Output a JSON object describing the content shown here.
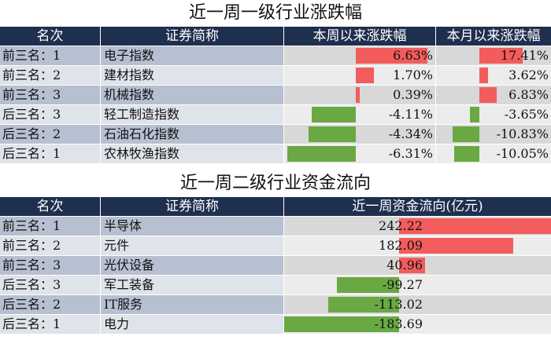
{
  "colors": {
    "header_bg": "#1f2f4e",
    "positive": "#f35c5c",
    "negative": "#6aa843"
  },
  "chart_data": [
    {
      "type": "table",
      "title": "近一周一级行业涨跌幅",
      "columns": [
        "名次",
        "证券简称",
        "本周以来涨跌幅",
        "本月以来涨跌幅"
      ],
      "rows": [
        {
          "rank": "前三名：1",
          "name": "电子指数",
          "week": 6.63,
          "week_label": "6.63%",
          "month": 17.41,
          "month_label": "17.41%"
        },
        {
          "rank": "前三名：2",
          "name": "建材指数",
          "week": 1.7,
          "week_label": "1.70%",
          "month": 3.62,
          "month_label": "3.62%"
        },
        {
          "rank": "前三名：3",
          "name": "机械指数",
          "week": 0.39,
          "week_label": "0.39%",
          "month": 6.83,
          "month_label": "6.83%"
        },
        {
          "rank": "后三名：3",
          "name": "轻工制造指数",
          "week": -4.11,
          "week_label": "-4.11%",
          "month": -3.65,
          "month_label": "-3.65%"
        },
        {
          "rank": "后三名：2",
          "name": "石油石化指数",
          "week": -4.34,
          "week_label": "-4.34%",
          "month": -10.83,
          "month_label": "-10.83%"
        },
        {
          "rank": "后三名：1",
          "name": "农林牧渔指数",
          "week": -6.31,
          "week_label": "-6.31%",
          "month": -10.05,
          "month_label": "-10.05%"
        }
      ]
    },
    {
      "type": "table",
      "title": "近一周二级行业资金流向",
      "columns": [
        "名次",
        "证券简称",
        "近一周资金流向(亿元)"
      ],
      "rows": [
        {
          "rank": "前三名：1",
          "name": "半导体",
          "flow": 242.22,
          "flow_label": "242.22"
        },
        {
          "rank": "前三名：2",
          "name": "元件",
          "flow": 182.09,
          "flow_label": "182.09"
        },
        {
          "rank": "前三名：3",
          "name": "光伏设备",
          "flow": 40.96,
          "flow_label": "40.96"
        },
        {
          "rank": "后三名：3",
          "name": "军工装备",
          "flow": -99.27,
          "flow_label": "-99.27"
        },
        {
          "rank": "后三名：2",
          "name": "IT服务",
          "flow": -113.02,
          "flow_label": "-113.02"
        },
        {
          "rank": "后三名：1",
          "name": "电力",
          "flow": -183.69,
          "flow_label": "-183.69"
        }
      ]
    }
  ]
}
